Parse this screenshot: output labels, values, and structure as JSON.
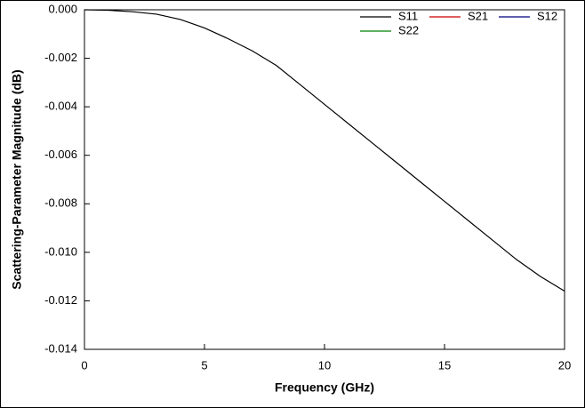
{
  "chart_data": {
    "type": "line",
    "xlabel": "Frequency (GHz)",
    "ylabel": "Scattering-Parameter Magnitude (dB)",
    "x": [
      0,
      1,
      2,
      3,
      4,
      5,
      6,
      7,
      8,
      9,
      10,
      11,
      12,
      13,
      14,
      15,
      16,
      17,
      18,
      19,
      20
    ],
    "series": [
      {
        "name": "S11",
        "color": "#000000",
        "values": [
          0,
          -2e-05,
          -8e-05,
          -0.00018,
          -0.0004,
          -0.00075,
          -0.0012,
          -0.0017,
          -0.0023,
          -0.0031,
          -0.0039,
          -0.0047,
          -0.0055,
          -0.0063,
          -0.0071,
          -0.0079,
          -0.0087,
          -0.0095,
          -0.0103,
          -0.011,
          -0.0116
        ]
      },
      {
        "name": "S21",
        "color": "#cc0000",
        "values": [
          null,
          null,
          null,
          null,
          null,
          null,
          null,
          null,
          null,
          null,
          null,
          null,
          null,
          null,
          null,
          null,
          null,
          null,
          null,
          null,
          null
        ]
      },
      {
        "name": "S12",
        "color": "#000080",
        "values": [
          null,
          null,
          null,
          null,
          null,
          null,
          null,
          null,
          null,
          null,
          null,
          null,
          null,
          null,
          null,
          null,
          null,
          null,
          null,
          null,
          null
        ]
      },
      {
        "name": "S22",
        "color": "#008000",
        "values": [
          null,
          null,
          null,
          null,
          null,
          null,
          null,
          null,
          null,
          null,
          null,
          null,
          null,
          null,
          null,
          null,
          null,
          null,
          null,
          null,
          null
        ]
      }
    ],
    "xlim": [
      0,
      20
    ],
    "xticks": [
      0,
      5,
      10,
      15,
      20
    ],
    "ylim": [
      -0.014,
      0
    ],
    "yticks": [
      {
        "value": 0,
        "label": "0.000"
      },
      {
        "value": -0.002,
        "label": "-0.002"
      },
      {
        "value": -0.004,
        "label": "-0.004"
      },
      {
        "value": -0.006,
        "label": "-0.006"
      },
      {
        "value": -0.008,
        "label": "-0.008"
      },
      {
        "value": -0.01,
        "label": "-0.010"
      },
      {
        "value": -0.012,
        "label": "-0.012"
      },
      {
        "value": -0.014,
        "label": "-0.014"
      }
    ],
    "legend": "upper right",
    "grid": false
  }
}
